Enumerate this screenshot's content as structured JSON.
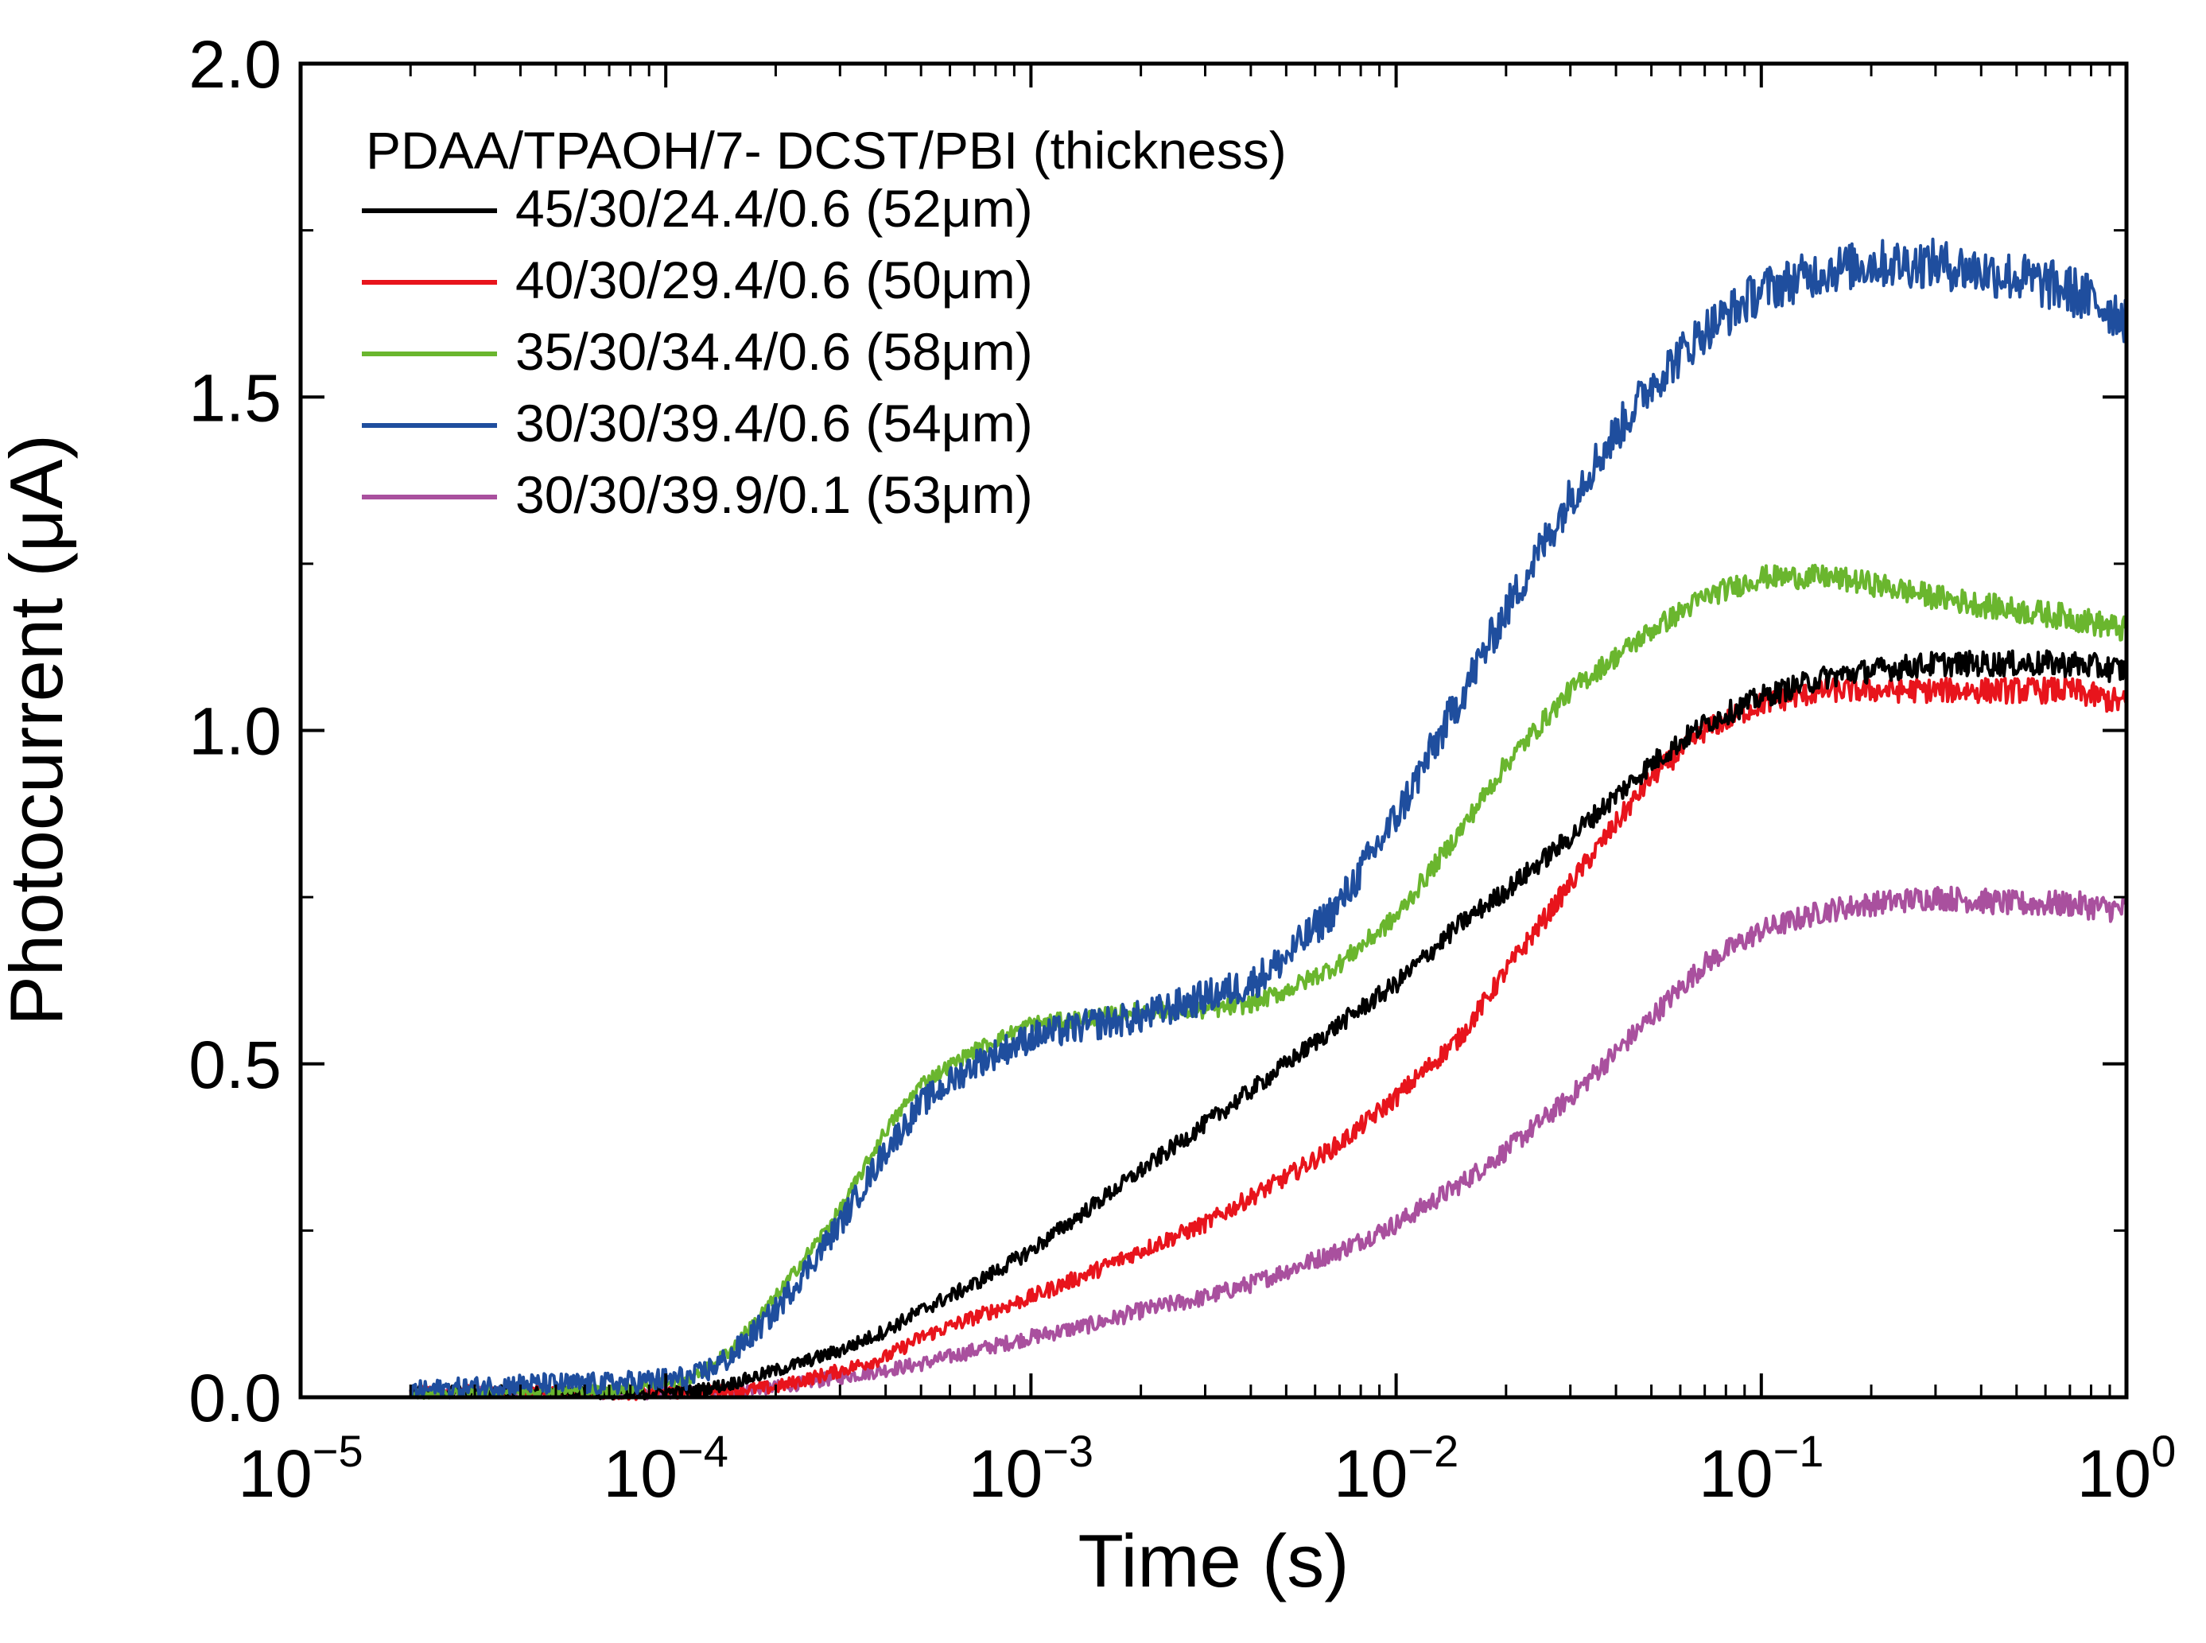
{
  "chart_data": {
    "type": "line",
    "title": "",
    "xlabel": "Time (s)",
    "ylabel": "Photocurrent (μA)",
    "xscale": "log",
    "xlim": [
      1e-05,
      1
    ],
    "ylim": [
      0.0,
      2.0
    ],
    "grid": false,
    "x_ticks": [
      {
        "base": "10",
        "exp": "−5",
        "value": 1e-05
      },
      {
        "base": "10",
        "exp": "−4",
        "value": 0.0001
      },
      {
        "base": "10",
        "exp": "−3",
        "value": 0.001
      },
      {
        "base": "10",
        "exp": "−2",
        "value": 0.01
      },
      {
        "base": "10",
        "exp": "−1",
        "value": 0.1
      },
      {
        "base": "10",
        "exp": "0",
        "value": 1
      }
    ],
    "y_ticks": [
      {
        "label": "0.0",
        "value": 0.0
      },
      {
        "label": "0.5",
        "value": 0.5
      },
      {
        "label": "1.0",
        "value": 1.0
      },
      {
        "label": "1.5",
        "value": 1.5
      },
      {
        "label": "2.0",
        "value": 2.0
      }
    ],
    "legend": {
      "title": "PDAA/TPAOH/7- DCST/PBI (thickness)",
      "position": "top-left"
    },
    "series": [
      {
        "name": "45/30/24.4/0.6 (52μm)",
        "color": "#000000",
        "noise": 0.02,
        "points": [
          [
            2e-05,
            0.01
          ],
          [
            4e-05,
            0.01
          ],
          [
            8e-05,
            0.005
          ],
          [
            0.00012,
            0.01
          ],
          [
            0.00015,
            0.02
          ],
          [
            0.0002,
            0.04
          ],
          [
            0.0003,
            0.07
          ],
          [
            0.0004,
            0.1
          ],
          [
            0.0005,
            0.13
          ],
          [
            0.0007,
            0.17
          ],
          [
            0.001,
            0.22
          ],
          [
            0.0015,
            0.29
          ],
          [
            0.002,
            0.34
          ],
          [
            0.003,
            0.41
          ],
          [
            0.004,
            0.46
          ],
          [
            0.005,
            0.5
          ],
          [
            0.007,
            0.56
          ],
          [
            0.01,
            0.62
          ],
          [
            0.015,
            0.71
          ],
          [
            0.02,
            0.76
          ],
          [
            0.03,
            0.84
          ],
          [
            0.05,
            0.95
          ],
          [
            0.07,
            1.01
          ],
          [
            0.1,
            1.05
          ],
          [
            0.15,
            1.08
          ],
          [
            0.2,
            1.09
          ],
          [
            0.3,
            1.1
          ],
          [
            0.5,
            1.1
          ],
          [
            0.7,
            1.1
          ],
          [
            1.0,
            1.09
          ]
        ]
      },
      {
        "name": "40/30/29.4/0.6 (50μm)",
        "color": "#e8141c",
        "noise": 0.02,
        "points": [
          [
            2e-05,
            0.01
          ],
          [
            4e-05,
            0.01
          ],
          [
            8e-05,
            0.005
          ],
          [
            0.00015,
            0.01
          ],
          [
            0.0002,
            0.015
          ],
          [
            0.0003,
            0.04
          ],
          [
            0.0004,
            0.06
          ],
          [
            0.0005,
            0.09
          ],
          [
            0.0007,
            0.12
          ],
          [
            0.001,
            0.15
          ],
          [
            0.0015,
            0.19
          ],
          [
            0.002,
            0.22
          ],
          [
            0.003,
            0.26
          ],
          [
            0.004,
            0.3
          ],
          [
            0.005,
            0.33
          ],
          [
            0.007,
            0.38
          ],
          [
            0.01,
            0.45
          ],
          [
            0.015,
            0.54
          ],
          [
            0.02,
            0.64
          ],
          [
            0.03,
            0.77
          ],
          [
            0.05,
            0.93
          ],
          [
            0.07,
            1.0
          ],
          [
            0.1,
            1.04
          ],
          [
            0.15,
            1.06
          ],
          [
            0.2,
            1.06
          ],
          [
            0.3,
            1.06
          ],
          [
            0.5,
            1.06
          ],
          [
            0.7,
            1.06
          ],
          [
            1.0,
            1.04
          ]
        ]
      },
      {
        "name": "35/30/34.4/0.6 (58μm)",
        "color": "#6ab62e",
        "noise": 0.02,
        "points": [
          [
            2e-05,
            0.005
          ],
          [
            4e-05,
            0.01
          ],
          [
            7e-05,
            0.01
          ],
          [
            0.00012,
            0.03
          ],
          [
            0.00015,
            0.07
          ],
          [
            0.0002,
            0.15
          ],
          [
            0.0003,
            0.28
          ],
          [
            0.0004,
            0.4
          ],
          [
            0.0005,
            0.47
          ],
          [
            0.0007,
            0.52
          ],
          [
            0.001,
            0.56
          ],
          [
            0.0015,
            0.57
          ],
          [
            0.002,
            0.58
          ],
          [
            0.003,
            0.58
          ],
          [
            0.004,
            0.59
          ],
          [
            0.005,
            0.61
          ],
          [
            0.007,
            0.65
          ],
          [
            0.01,
            0.72
          ],
          [
            0.015,
            0.85
          ],
          [
            0.02,
            0.95
          ],
          [
            0.03,
            1.06
          ],
          [
            0.05,
            1.15
          ],
          [
            0.07,
            1.2
          ],
          [
            0.1,
            1.23
          ],
          [
            0.15,
            1.23
          ],
          [
            0.2,
            1.22
          ],
          [
            0.3,
            1.2
          ],
          [
            0.5,
            1.18
          ],
          [
            0.7,
            1.17
          ],
          [
            1.0,
            1.15
          ]
        ]
      },
      {
        "name": "30/30/39.4/0.6 (54μm)",
        "color": "#1f4e9e",
        "noise": 0.04,
        "points": [
          [
            2e-05,
            0.01
          ],
          [
            4e-05,
            0.02
          ],
          [
            7e-05,
            0.02
          ],
          [
            0.00012,
            0.03
          ],
          [
            0.00015,
            0.06
          ],
          [
            0.0002,
            0.13
          ],
          [
            0.0003,
            0.26
          ],
          [
            0.0004,
            0.37
          ],
          [
            0.0005,
            0.44
          ],
          [
            0.0007,
            0.5
          ],
          [
            0.001,
            0.54
          ],
          [
            0.0015,
            0.56
          ],
          [
            0.002,
            0.57
          ],
          [
            0.003,
            0.6
          ],
          [
            0.004,
            0.62
          ],
          [
            0.005,
            0.66
          ],
          [
            0.007,
            0.74
          ],
          [
            0.01,
            0.87
          ],
          [
            0.015,
            1.05
          ],
          [
            0.02,
            1.18
          ],
          [
            0.03,
            1.35
          ],
          [
            0.05,
            1.52
          ],
          [
            0.07,
            1.6
          ],
          [
            0.1,
            1.66
          ],
          [
            0.15,
            1.69
          ],
          [
            0.2,
            1.7
          ],
          [
            0.3,
            1.7
          ],
          [
            0.5,
            1.68
          ],
          [
            0.7,
            1.66
          ],
          [
            1.0,
            1.62
          ]
        ]
      },
      {
        "name": "30/30/39.9/0.1 (53μm)",
        "color": "#a9509e",
        "noise": 0.02,
        "points": [
          [
            2e-05,
            0.005
          ],
          [
            4e-05,
            0.01
          ],
          [
            8e-05,
            0.005
          ],
          [
            0.00015,
            0.01
          ],
          [
            0.0002,
            0.015
          ],
          [
            0.0003,
            0.03
          ],
          [
            0.0005,
            0.05
          ],
          [
            0.0007,
            0.07
          ],
          [
            0.001,
            0.09
          ],
          [
            0.0015,
            0.11
          ],
          [
            0.002,
            0.13
          ],
          [
            0.003,
            0.15
          ],
          [
            0.004,
            0.17
          ],
          [
            0.005,
            0.19
          ],
          [
            0.007,
            0.22
          ],
          [
            0.01,
            0.26
          ],
          [
            0.015,
            0.32
          ],
          [
            0.02,
            0.37
          ],
          [
            0.03,
            0.45
          ],
          [
            0.05,
            0.57
          ],
          [
            0.07,
            0.65
          ],
          [
            0.1,
            0.7
          ],
          [
            0.15,
            0.73
          ],
          [
            0.2,
            0.74
          ],
          [
            0.3,
            0.75
          ],
          [
            0.5,
            0.74
          ],
          [
            0.7,
            0.74
          ],
          [
            1.0,
            0.73
          ]
        ]
      }
    ]
  }
}
